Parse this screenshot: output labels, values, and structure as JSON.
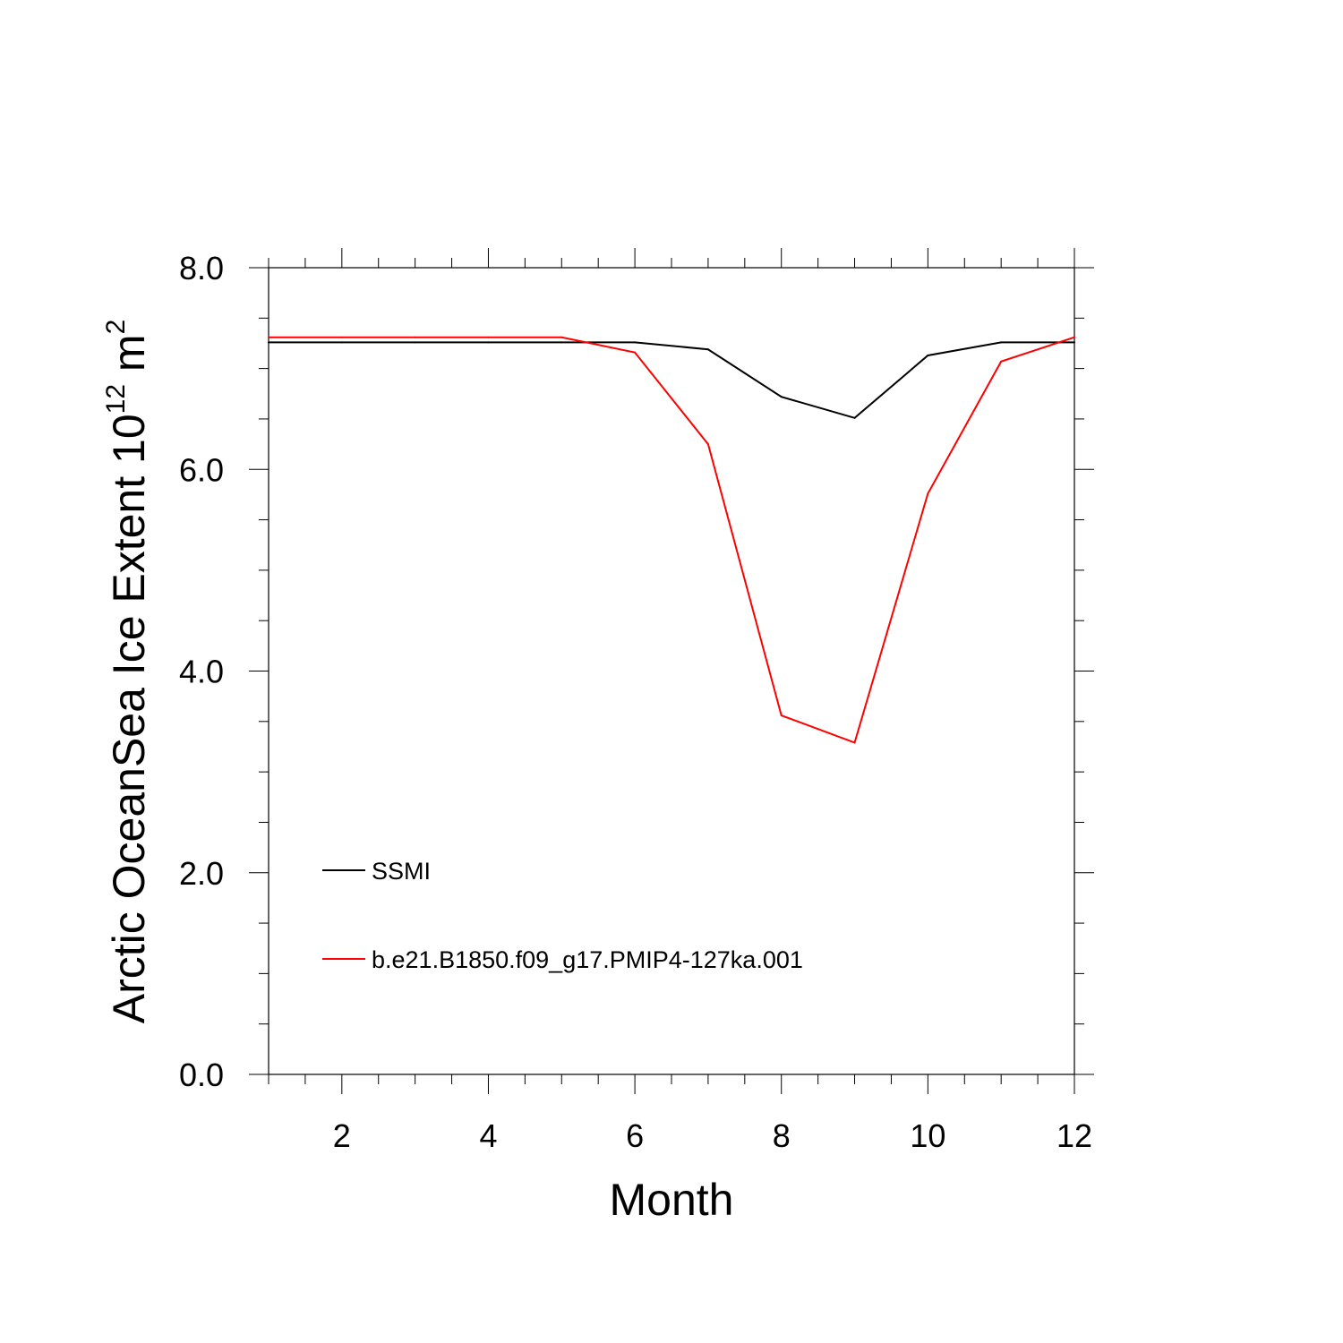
{
  "chart_data": {
    "type": "line",
    "title": "",
    "xlabel": "Month",
    "ylabel": {
      "prefix": "Arctic OceanSea Ice Extent 10",
      "exponent": "12",
      "unit": " m",
      "unit_exponent": "2"
    },
    "xlim": [
      1,
      12
    ],
    "ylim": [
      0,
      8
    ],
    "x_ticks": [
      2,
      4,
      6,
      8,
      10,
      12
    ],
    "x_tick_labels": [
      "2",
      "4",
      "6",
      "8",
      "10",
      "12"
    ],
    "y_ticks": [
      0,
      2,
      4,
      6,
      8
    ],
    "y_tick_labels": [
      "0.0",
      "2.0",
      "4.0",
      "6.0",
      "8.0"
    ],
    "grid": false,
    "legend_position": "bottom-left",
    "x": [
      1,
      2,
      3,
      4,
      5,
      6,
      7,
      8,
      9,
      10,
      11,
      12
    ],
    "series": [
      {
        "name": "SSMI",
        "color": "#000000",
        "values": [
          7.26,
          7.26,
          7.26,
          7.26,
          7.26,
          7.26,
          7.19,
          6.72,
          6.51,
          7.13,
          7.26,
          7.26
        ]
      },
      {
        "name": "b.e21.B1850.f09_g17.PMIP4-127ka.001",
        "color": "#ff0000",
        "values": [
          7.31,
          7.31,
          7.31,
          7.31,
          7.31,
          7.16,
          6.25,
          3.56,
          3.29,
          5.76,
          7.07,
          7.31
        ]
      }
    ]
  }
}
